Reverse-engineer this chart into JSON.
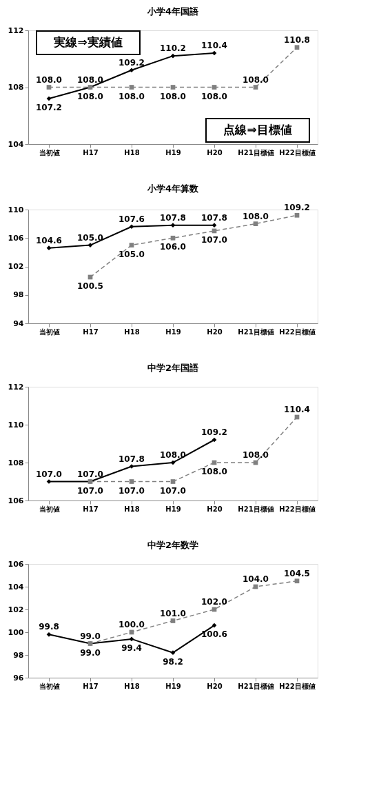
{
  "chart_data": [
    {
      "type": "line",
      "title": "小学4年国語",
      "categories": [
        "当初値",
        "H17",
        "H18",
        "H19",
        "H20",
        "H21目標値",
        "H22目標値"
      ],
      "ylim": [
        104,
        112
      ],
      "yticks": [
        104,
        108,
        112
      ],
      "annotations": [
        "実線⇒実績値",
        "点線⇒目標値"
      ],
      "series": [
        {
          "color": "#000000",
          "marker": "diamond",
          "line_style": "solid",
          "values": [
            107.2,
            108.0,
            109.2,
            110.2,
            110.4,
            null,
            null
          ],
          "value_labels": [
            "107.2",
            "108.0",
            "109.2",
            "110.2",
            "110.4",
            null,
            null
          ]
        },
        {
          "color": "#808080",
          "marker": "square",
          "line_style": "dashed",
          "values": [
            108.0,
            108.0,
            108.0,
            108.0,
            108.0,
            108.0,
            110.8
          ],
          "value_labels": [
            "108.0",
            "108.0",
            "108.0",
            "108.0",
            "108.0",
            "108.0",
            "110.8"
          ]
        }
      ]
    },
    {
      "type": "line",
      "title": "小学4年算数",
      "categories": [
        "当初値",
        "H17",
        "H18",
        "H19",
        "H20",
        "H21目標値",
        "H22目標値"
      ],
      "ylim": [
        94,
        110
      ],
      "yticks": [
        94,
        98,
        102,
        106,
        110
      ],
      "series": [
        {
          "color": "#000000",
          "marker": "diamond",
          "line_style": "solid",
          "values": [
            104.6,
            105.0,
            107.6,
            107.8,
            107.8,
            null,
            null
          ],
          "value_labels": [
            "104.6",
            "105.0",
            "107.6",
            "107.8",
            "107.8",
            null,
            null
          ]
        },
        {
          "color": "#808080",
          "marker": "square",
          "line_style": "dashed",
          "values": [
            null,
            100.5,
            105.0,
            106.0,
            107.0,
            108.0,
            109.2
          ],
          "value_labels": [
            null,
            "100.5",
            "105.0",
            "106.0",
            "107.0",
            "108.0",
            "109.2"
          ]
        }
      ]
    },
    {
      "type": "line",
      "title": "中学2年国語",
      "categories": [
        "当初値",
        "H17",
        "H18",
        "H19",
        "H20",
        "H21目標値",
        "H22目標値"
      ],
      "ylim": [
        106,
        112
      ],
      "yticks": [
        106,
        108,
        110,
        112
      ],
      "series": [
        {
          "color": "#000000",
          "marker": "diamond",
          "line_style": "solid",
          "values": [
            107.0,
            107.0,
            107.8,
            108.0,
            109.2,
            null,
            null
          ],
          "value_labels": [
            "107.0",
            "107.0",
            "107.8",
            "108.0",
            "109.2",
            null,
            null
          ]
        },
        {
          "color": "#808080",
          "marker": "square",
          "line_style": "dashed",
          "values": [
            null,
            107.0,
            107.0,
            107.0,
            108.0,
            108.0,
            110.4
          ],
          "value_labels": [
            null,
            "107.0",
            "107.0",
            "107.0",
            "108.0",
            "108.0",
            "110.4"
          ]
        }
      ]
    },
    {
      "type": "line",
      "title": "中学2年数学",
      "categories": [
        "当初値",
        "H17",
        "H18",
        "H19",
        "H20",
        "H21目標値",
        "H22目標値"
      ],
      "ylim": [
        96,
        106
      ],
      "yticks": [
        96,
        98,
        100,
        102,
        104,
        106
      ],
      "series": [
        {
          "color": "#000000",
          "marker": "diamond",
          "line_style": "solid",
          "values": [
            99.8,
            99.0,
            99.4,
            98.2,
            100.6,
            null,
            null
          ],
          "value_labels": [
            "99.8",
            "99.0",
            "99.4",
            "98.2",
            "100.6",
            null,
            null
          ]
        },
        {
          "color": "#808080",
          "marker": "square",
          "line_style": "dashed",
          "values": [
            null,
            99.0,
            100.0,
            101.0,
            102.0,
            104.0,
            104.5
          ],
          "value_labels": [
            null,
            "99.0",
            "100.0",
            "101.0",
            "102.0",
            "104.0",
            "104.5"
          ]
        }
      ]
    }
  ]
}
